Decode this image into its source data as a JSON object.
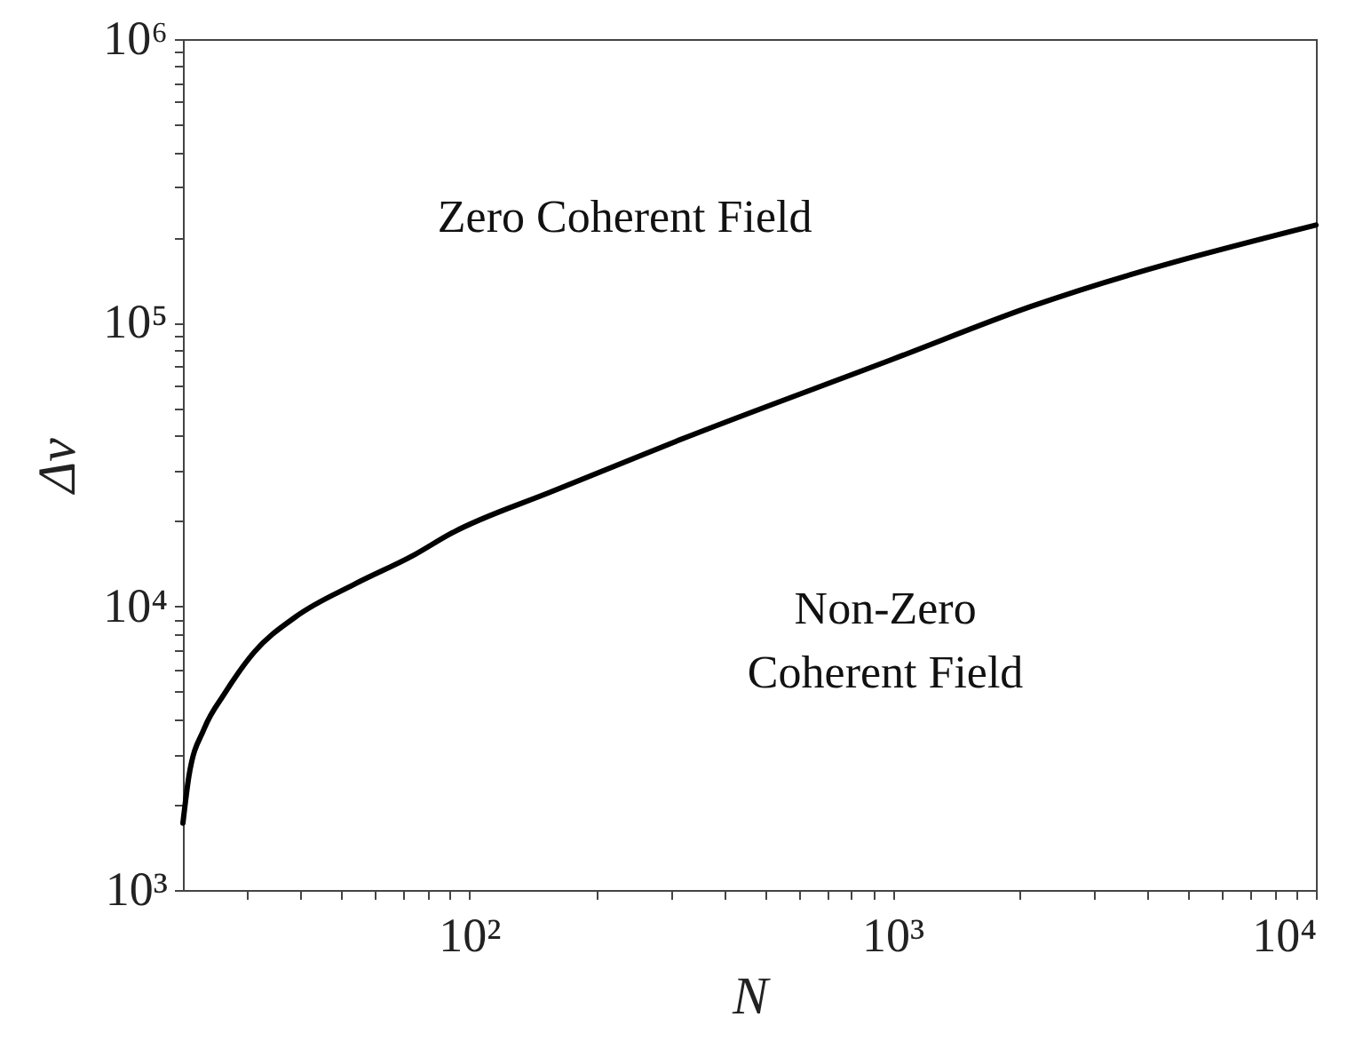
{
  "chart_data": {
    "type": "line",
    "xlabel": "N",
    "ylabel": "Δν",
    "log": "xy",
    "grid": false,
    "marker": "none",
    "line_style": "solid",
    "x": [
      21.1,
      21.8,
      23.7,
      26.5,
      31.1,
      39,
      53.8,
      74.3,
      90.2,
      158,
      307,
      1000,
      2120,
      10000
    ],
    "series": [
      {
        "color": "#000000",
        "values": [
          1720,
          2520,
          3710,
          4940,
          6900,
          9200,
          12000,
          15200,
          18000,
          25500,
          38100,
          74300,
          114000,
          221000
        ]
      }
    ],
    "xlim": [
      21.1,
      10000
    ],
    "xticks": [
      {
        "value": 30,
        "label": null
      },
      {
        "value": 40,
        "label": null
      },
      {
        "value": 50,
        "label": null
      },
      {
        "value": 60,
        "label": null
      },
      {
        "value": 70,
        "label": null
      },
      {
        "value": 80,
        "label": null
      },
      {
        "value": 90,
        "label": null
      },
      {
        "value": 100,
        "label": "10²"
      },
      {
        "value": 200,
        "label": null
      },
      {
        "value": 300,
        "label": null
      },
      {
        "value": 400,
        "label": null
      },
      {
        "value": 500,
        "label": null
      },
      {
        "value": 600,
        "label": null
      },
      {
        "value": 700,
        "label": null
      },
      {
        "value": 800,
        "label": null
      },
      {
        "value": 900,
        "label": null
      },
      {
        "value": 1000,
        "label": "10³"
      },
      {
        "value": 2000,
        "label": null
      },
      {
        "value": 3000,
        "label": null
      },
      {
        "value": 4000,
        "label": null
      },
      {
        "value": 5000,
        "label": null
      },
      {
        "value": 6000,
        "label": null
      },
      {
        "value": 7000,
        "label": null
      },
      {
        "value": 8000,
        "label": null
      },
      {
        "value": 9000,
        "label": null
      },
      {
        "value": 10000,
        "label": "10⁴"
      }
    ],
    "ylim": [
      1000,
      1000000
    ],
    "yticks": [
      {
        "value": 1000,
        "label": "10³"
      },
      {
        "value": 2000,
        "label": null
      },
      {
        "value": 3000,
        "label": null
      },
      {
        "value": 4000,
        "label": null
      },
      {
        "value": 5000,
        "label": null
      },
      {
        "value": 6000,
        "label": null
      },
      {
        "value": 7000,
        "label": null
      },
      {
        "value": 8000,
        "label": null
      },
      {
        "value": 9000,
        "label": null
      },
      {
        "value": 10000,
        "label": "10⁴"
      },
      {
        "value": 20000,
        "label": null
      },
      {
        "value": 30000,
        "label": null
      },
      {
        "value": 40000,
        "label": null
      },
      {
        "value": 50000,
        "label": null
      },
      {
        "value": 60000,
        "label": null
      },
      {
        "value": 70000,
        "label": null
      },
      {
        "value": 80000,
        "label": null
      },
      {
        "value": 90000,
        "label": null
      },
      {
        "value": 100000,
        "label": "10⁵"
      },
      {
        "value": 200000,
        "label": null
      },
      {
        "value": 300000,
        "label": null
      },
      {
        "value": 400000,
        "label": null
      },
      {
        "value": 500000,
        "label": null
      },
      {
        "value": 600000,
        "label": null
      },
      {
        "value": 700000,
        "label": null
      },
      {
        "value": 800000,
        "label": null
      },
      {
        "value": 900000,
        "label": null
      },
      {
        "value": 1000000,
        "label": "10⁶"
      }
    ],
    "annotations": [
      "Zero Coherent Field",
      "Non-Zero\nCoherent Field"
    ]
  }
}
